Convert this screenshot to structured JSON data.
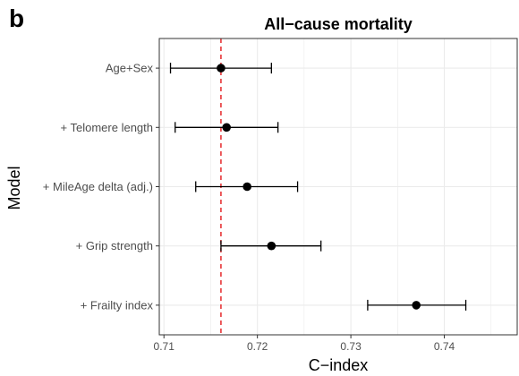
{
  "panel_label": "b",
  "chart_data": {
    "type": "scatter",
    "subtype": "forest-plot",
    "title": "All−cause mortality",
    "xlabel": "C−index",
    "ylabel": "Model",
    "categories": [
      "Age+Sex",
      "+ Telomere length",
      "+ MileAge delta (adj.)",
      "+ Grip strength",
      "+ Frailty index"
    ],
    "series": [
      {
        "values": [
          0.7161,
          0.7167,
          0.7189,
          0.7215,
          0.737
        ],
        "ci_lower": [
          0.7107,
          0.7112,
          0.7134,
          0.7161,
          0.7318
        ],
        "ci_upper": [
          0.7215,
          0.7222,
          0.7243,
          0.7268,
          0.7423
        ]
      }
    ],
    "reference_line": {
      "value": 0.7161,
      "color": "#e41a1c",
      "style": "dashed"
    },
    "xlim": [
      0.7095,
      0.7478
    ],
    "xticks": [
      0.71,
      0.72,
      0.73,
      0.74
    ],
    "xtick_labels": [
      "0.71",
      "0.72",
      "0.73",
      "0.74"
    ],
    "grid": true,
    "legend": "none",
    "colors": {
      "point": "#000000",
      "errorbar": "#000000",
      "grid": "#ebebeb",
      "panel_border": "#333333"
    }
  }
}
